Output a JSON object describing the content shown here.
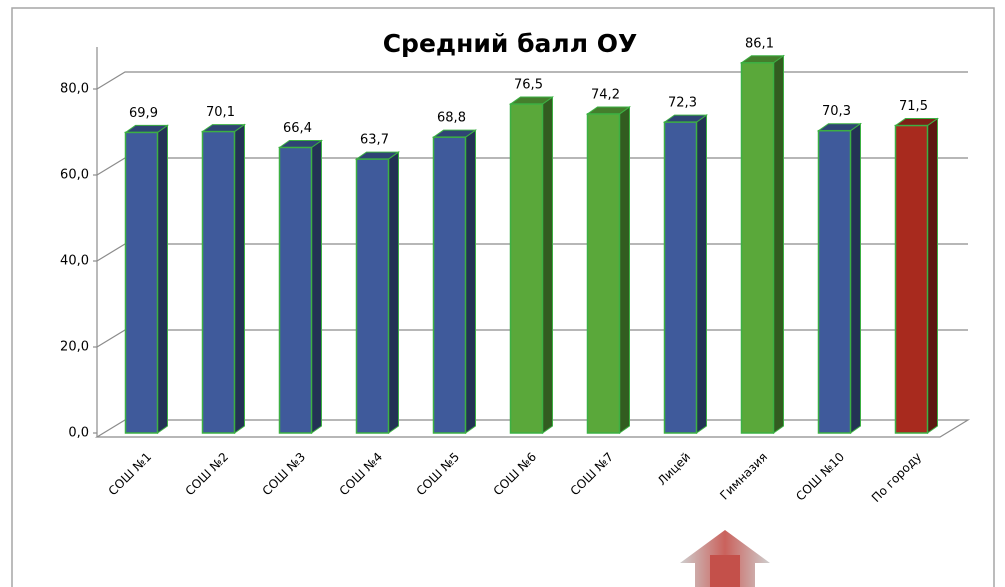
{
  "chart_data": {
    "type": "bar3d",
    "title": "Средний балл ОУ",
    "categories": [
      "СОШ №1",
      "СОШ №2",
      "СОШ №3",
      "СОШ №4",
      "СОШ №5",
      "СОШ №6",
      "СОШ №7",
      "Лицей",
      "Гимназия",
      "СОШ №10",
      "По городу"
    ],
    "values": [
      69.9,
      70.1,
      66.4,
      63.7,
      68.8,
      76.5,
      74.2,
      72.3,
      86.1,
      70.3,
      71.5
    ],
    "value_labels": [
      "69,9",
      "70,1",
      "66,4",
      "63,7",
      "68,8",
      "76,5",
      "74,2",
      "72,3",
      "86,1",
      "70,3",
      "71,5"
    ],
    "colors": [
      "#3f5a9b",
      "#3f5a9b",
      "#3f5a9b",
      "#3f5a9b",
      "#3f5a9b",
      "#5aa83a",
      "#5aa83a",
      "#3f5a9b",
      "#5aa83a",
      "#3f5a9b",
      "#a82a1e"
    ],
    "edge_color": "#3cb043",
    "ylim": [
      0,
      80
    ],
    "yticks": [
      {
        "value": 0,
        "label": "0,0"
      },
      {
        "value": 20,
        "label": "20,0"
      },
      {
        "value": 40,
        "label": "40,0"
      },
      {
        "value": 60,
        "label": "60,0"
      },
      {
        "value": 80,
        "label": "80,0"
      }
    ],
    "grid": true
  }
}
